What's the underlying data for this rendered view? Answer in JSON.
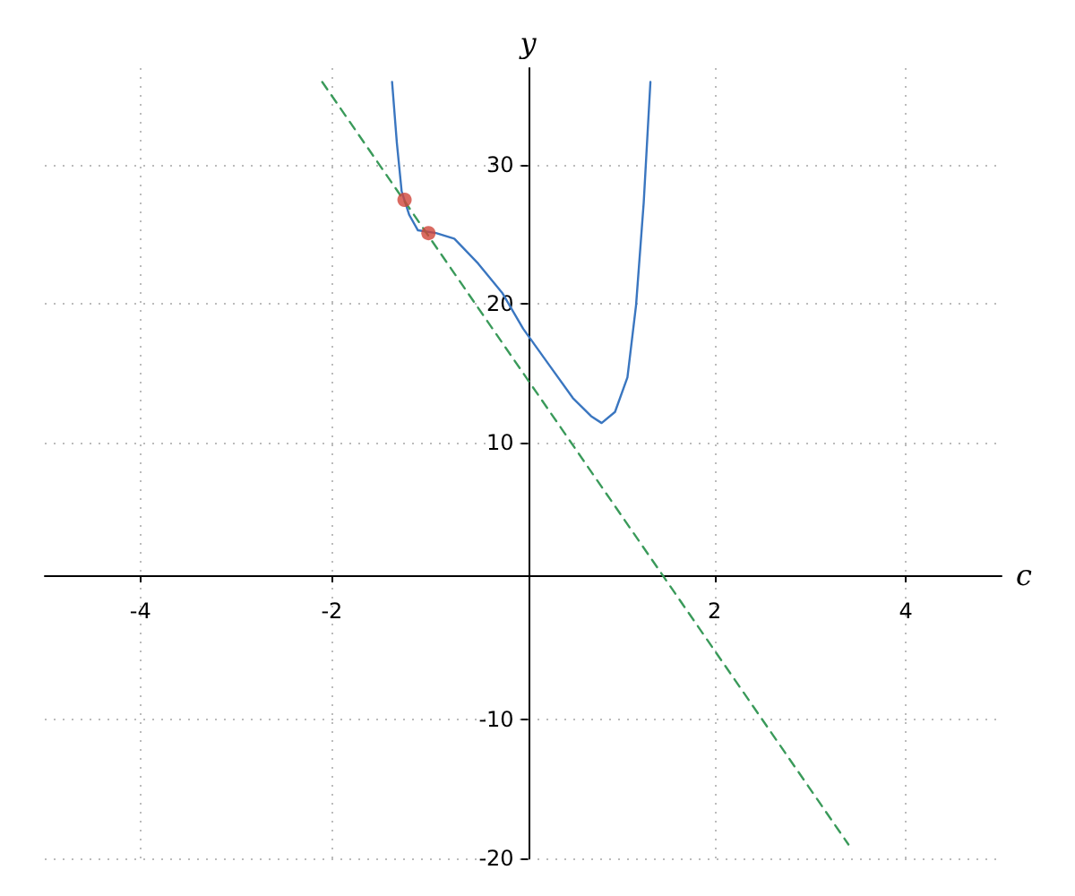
{
  "chart_data": {
    "type": "line",
    "xlabel": "c",
    "ylabel": "y",
    "xlim": [
      -5,
      5
    ],
    "ylim": [
      -20,
      37
    ],
    "xticks": [
      -4,
      -2,
      2,
      4
    ],
    "yticks": [
      -20,
      -10,
      10,
      20,
      30
    ],
    "grid": true,
    "marker": "none",
    "series": [
      {
        "color": "#3a76c0",
        "line_style": "solid",
        "x": [
          -1.37,
          -1.32,
          -1.27,
          -1.19,
          -1.1,
          -0.91,
          -0.72,
          -0.47,
          -0.22,
          0,
          0.27,
          0.52,
          0.71,
          0.82,
          0.96,
          1.09,
          1.18,
          1.26,
          1.33
        ],
        "values": [
          36,
          31.6,
          28.1,
          26.4,
          25.3,
          25.1,
          24.7,
          22.9,
          20.8,
          18.2,
          15.6,
          13.2,
          11.9,
          11.4,
          12.2,
          14.7,
          19.9,
          27.3,
          36
        ]
      },
      {
        "color": "#3a9a5a",
        "line_style": "dashed",
        "x": [
          -2.1,
          3.4
        ],
        "values": [
          36,
          -19
        ]
      },
      {
        "type": "scatter",
        "color": "#d0453a",
        "marker": "circle",
        "x": [
          -1.24,
          -0.99
        ],
        "values": [
          27.5,
          25.1
        ]
      }
    ]
  }
}
